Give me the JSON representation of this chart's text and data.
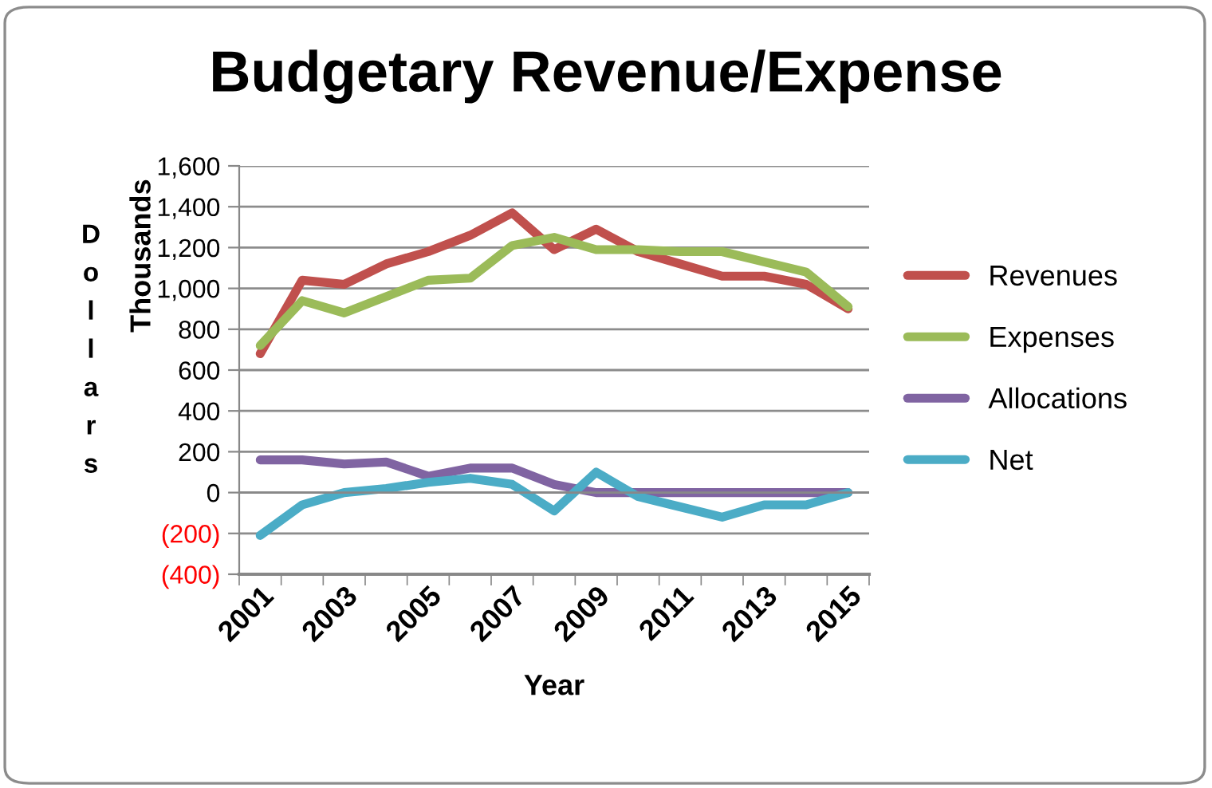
{
  "chart_data": {
    "type": "line",
    "title": "Budgetary Revenue/Expense",
    "xlabel": "Year",
    "ylabel": "Thousands",
    "annotations": [
      "Dollars"
    ],
    "categories": [
      "2001",
      null,
      "2003",
      null,
      "2005",
      null,
      "2007",
      null,
      "2009",
      null,
      "2011",
      null,
      "2013",
      null,
      "2015"
    ],
    "series": [
      {
        "name": "Revenues",
        "color": "#c0504d",
        "values": [
          680,
          1040,
          1020,
          1120,
          1180,
          1260,
          1370,
          1190,
          1290,
          1180,
          1120,
          1060,
          1060,
          1020,
          900
        ]
      },
      {
        "name": "Expenses",
        "color": "#9bbb59",
        "values": [
          720,
          940,
          880,
          960,
          1040,
          1050,
          1210,
          1250,
          1190,
          1190,
          1180,
          1180,
          1130,
          1080,
          910
        ]
      },
      {
        "name": "Allocations",
        "color": "#8064a2",
        "values": [
          160,
          160,
          140,
          150,
          80,
          120,
          120,
          40,
          0,
          0,
          0,
          0,
          0,
          0,
          0
        ]
      },
      {
        "name": "Net",
        "color": "#4bacc6",
        "values": [
          -210,
          -60,
          0,
          20,
          50,
          70,
          40,
          -90,
          100,
          -20,
          -70,
          -120,
          -60,
          -60,
          0
        ]
      }
    ],
    "ylim": [
      -400,
      1600
    ],
    "yticks": [
      {
        "value": -400,
        "label": "(400)"
      },
      {
        "value": -200,
        "label": "(200)"
      },
      0,
      200,
      400,
      600,
      800,
      {
        "value": 1000,
        "label": "1,000"
      },
      {
        "value": 1200,
        "label": "1,200"
      },
      {
        "value": 1400,
        "label": "1,400"
      },
      {
        "value": 1600,
        "label": "1,600"
      }
    ],
    "grid": "y",
    "legend": "right",
    "marker": "none",
    "line_style": "solid"
  }
}
